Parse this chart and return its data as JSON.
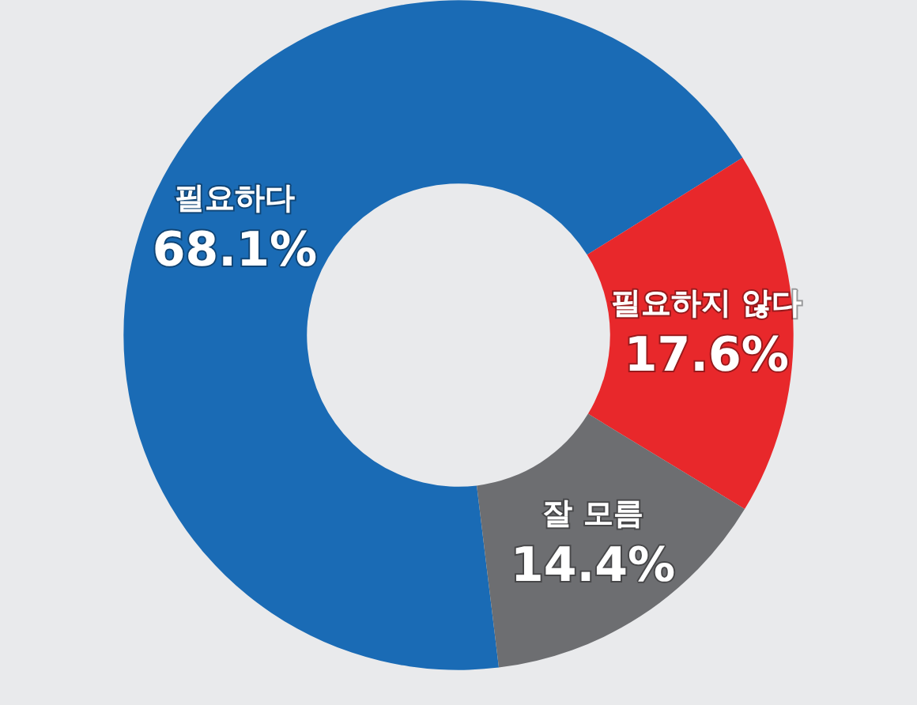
{
  "chart_data": {
    "type": "donut",
    "categories": [
      "필요하다",
      "필요하지 않다",
      "잘 모름"
    ],
    "values": [
      68.1,
      17.6,
      14.4
    ],
    "colors": [
      "#1a6bb5",
      "#e8282b",
      "#6d6e71"
    ],
    "value_labels": [
      "68.1%",
      "17.6%",
      "14.4%"
    ],
    "legend": false
  }
}
